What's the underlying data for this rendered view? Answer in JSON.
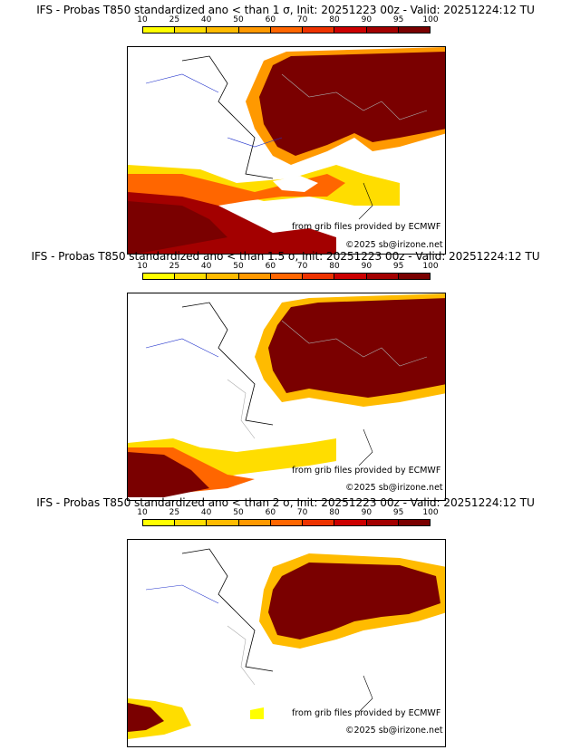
{
  "colorbar": {
    "ticks": [
      "10",
      "25",
      "40",
      "50",
      "60",
      "70",
      "80",
      "90",
      "95",
      "100"
    ],
    "colors": [
      "#ffff00",
      "#ffdd00",
      "#ffbb00",
      "#ff9900",
      "#ff6600",
      "#ee3300",
      "#cc0000",
      "#a30000",
      "#7a0000"
    ]
  },
  "panels": [
    {
      "title": "IFS - Probas T850  standardized ano < than 1 σ, Init: 20251223 00z - Valid: 20251224:12 TU",
      "credit_source": "from grib files provided by ECMWF",
      "credit_copyright": "©2025 sb@irizone.net"
    },
    {
      "title": "IFS - Probas T850  standardized ano < than 1.5 σ, Init: 20251223 00z - Valid: 20251224:12 TU",
      "credit_source": "from grib files provided by ECMWF",
      "credit_copyright": "©2025 sb@irizone.net"
    },
    {
      "title": "IFS - Probas T850  standardized ano < than 2 σ, Init: 20251223 00z - Valid: 20251224:12 TU",
      "credit_source": "from grib files provided by ECMWF",
      "credit_copyright": "©2025 sb@irizone.net"
    }
  ]
}
